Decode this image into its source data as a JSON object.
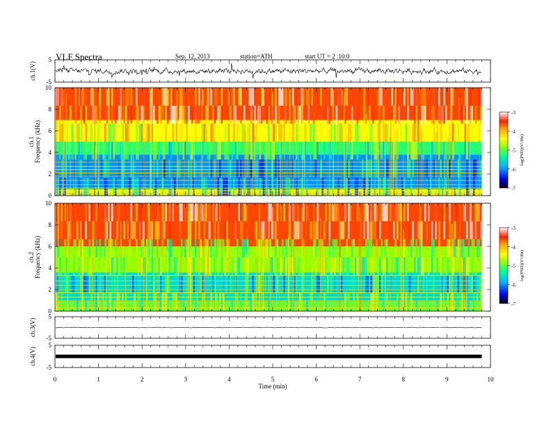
{
  "header": {
    "title": "VLF  Spectra",
    "date": "Sep. 12, 2013",
    "station": "station=ATH",
    "start": "start  UT  =   2  :10:0"
  },
  "colors": {
    "spectrogram_scale": [
      "#000000",
      "#0000ff",
      "#00b4ff",
      "#00ff96",
      "#96ff00",
      "#ffff00",
      "#ffa000",
      "#ff2000",
      "#ffffff"
    ]
  },
  "chart_data": [
    {
      "type": "line",
      "name": "panel-ch1-waveform",
      "ylabel": "ch.1(V)",
      "ylim": [
        -5,
        5
      ],
      "yticks": [
        "5",
        "-5"
      ],
      "xlim": [
        0,
        10
      ],
      "series": [
        {
          "values": "broadband noisy waveform centered near 0 V, roughly ±1 V"
        }
      ]
    },
    {
      "type": "heatmap",
      "name": "panel-ch1-spectrogram",
      "ylabel": "ch.1\nFrequency  (kHz)",
      "ylim": [
        0,
        10
      ],
      "yticks": [
        "0",
        "2",
        "4",
        "6",
        "8",
        "10"
      ],
      "xlim": [
        0,
        10
      ],
      "colorbar": {
        "label": "log(PSD)(V²/Hz)",
        "range": [
          -7,
          -3
        ],
        "ticks": [
          "-3",
          "-4",
          "-5",
          "-6",
          "-7"
        ]
      },
      "bands_kHz": [
        {
          "from": 0.0,
          "to": 0.6,
          "logPSD": -4.5
        },
        {
          "from": 0.6,
          "to": 3.8,
          "logPSD": -6.0
        },
        {
          "from": 3.8,
          "to": 5.0,
          "logPSD": -5.2
        },
        {
          "from": 5.0,
          "to": 7.0,
          "logPSD": -4.4
        },
        {
          "from": 7.0,
          "to": 10.0,
          "logPSD": -3.6
        }
      ]
    },
    {
      "type": "heatmap",
      "name": "panel-ch2-spectrogram",
      "ylabel": "ch.2\nFrequency  (kHz)",
      "ylim": [
        0,
        10
      ],
      "yticks": [
        "0",
        "2",
        "4",
        "6",
        "8",
        "10"
      ],
      "xlim": [
        0,
        10
      ],
      "colorbar": {
        "label": "log(PSD)(V²/Hz)",
        "range": [
          -7,
          -3
        ],
        "ticks": [
          "-3",
          "-4",
          "-5",
          "-6",
          "-7"
        ]
      },
      "bands_kHz": [
        {
          "from": 0.0,
          "to": 1.0,
          "logPSD": -5.0
        },
        {
          "from": 1.0,
          "to": 3.6,
          "logPSD": -5.6
        },
        {
          "from": 3.6,
          "to": 6.0,
          "logPSD": -4.8
        },
        {
          "from": 6.0,
          "to": 10.0,
          "logPSD": -3.6
        }
      ]
    },
    {
      "type": "line",
      "name": "panel-ch3-waveform",
      "ylabel": "ch.3(V)",
      "ylim": [
        -5,
        5
      ],
      "yticks": [
        "5",
        "-5"
      ],
      "xlim": [
        0,
        10
      ],
      "series": [
        {
          "values": "flat trace near 0 V"
        }
      ]
    },
    {
      "type": "line",
      "name": "panel-ch4-waveform",
      "ylabel": "ch.4(V)",
      "ylim": [
        -5,
        5
      ],
      "yticks": [
        "5",
        "-5"
      ],
      "xlim": [
        0,
        10
      ],
      "series": [
        {
          "values": "thick flat trace near 0 V"
        }
      ]
    }
  ],
  "xaxis": {
    "label": "Time  (min)",
    "range": [
      0,
      10
    ],
    "ticks": [
      "0",
      "1",
      "2",
      "3",
      "4",
      "5",
      "6",
      "7",
      "8",
      "9",
      "10"
    ],
    "data_end_min": 9.8
  }
}
